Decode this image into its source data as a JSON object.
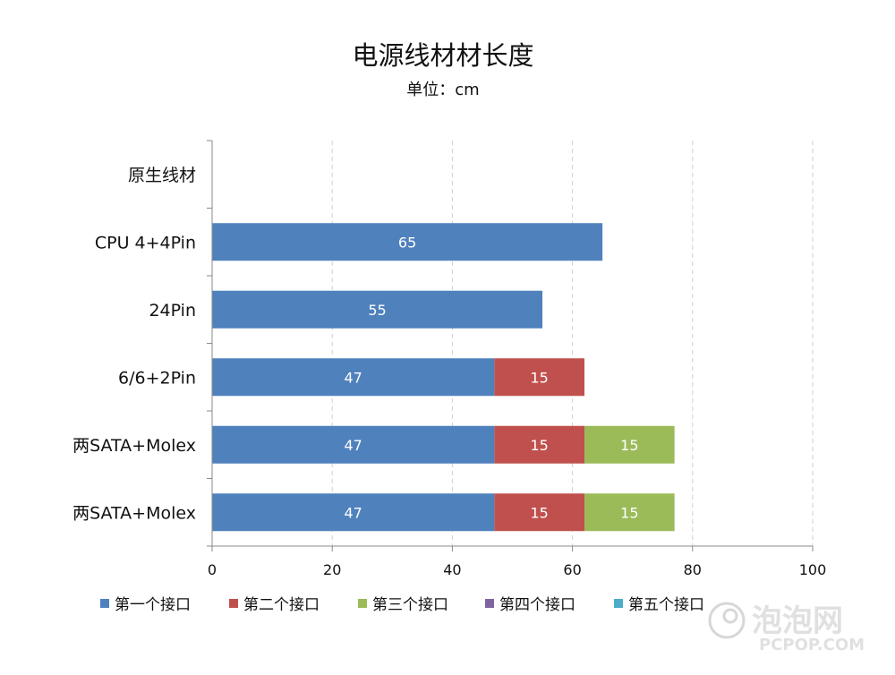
{
  "chart_data": {
    "type": "bar",
    "orientation": "horizontal",
    "stacked": true,
    "title": "电源线材材长度",
    "subtitle": "单位：cm",
    "categories": [
      "原生线材",
      "CPU 4+4Pin",
      "24Pin",
      "6/6+2Pin",
      "两SATA+Molex",
      "两SATA+Molex"
    ],
    "series": [
      {
        "name": "第一个接口",
        "color": "#4f81bd",
        "values": [
          null,
          65,
          55,
          47,
          47,
          47
        ]
      },
      {
        "name": "第二个接口",
        "color": "#c0504d",
        "values": [
          null,
          null,
          null,
          15,
          15,
          15
        ]
      },
      {
        "name": "第三个接口",
        "color": "#9bbb59",
        "values": [
          null,
          null,
          null,
          null,
          15,
          15
        ]
      },
      {
        "name": "第四个接口",
        "color": "#8064a2",
        "values": [
          null,
          null,
          null,
          null,
          null,
          null
        ]
      },
      {
        "name": "第五个接口",
        "color": "#4bacc6",
        "values": [
          null,
          null,
          null,
          null,
          null,
          null
        ]
      }
    ],
    "xlim": [
      0,
      100
    ],
    "xticks": [
      0,
      20,
      40,
      60,
      80,
      100
    ],
    "grid": "vertical dashed",
    "legend_position": "bottom",
    "data_labels": true
  },
  "watermark": {
    "cn": "泡泡网",
    "en": "PCPOP.COM"
  }
}
